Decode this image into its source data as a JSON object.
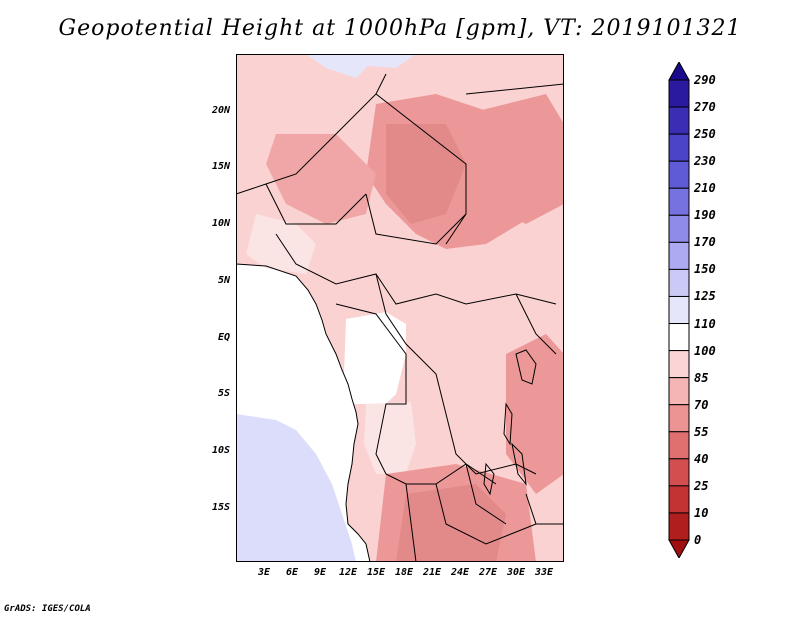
{
  "title": "Geopotential Height at 1000hPa [gpm], VT: 2019101321",
  "footer": "GrADS: IGES/COLA",
  "latitude_labels": [
    "20N",
    "15N",
    "10N",
    "5N",
    "EQ",
    "5S",
    "10S",
    "15S"
  ],
  "longitude_labels": [
    "3E",
    "6E",
    "9E",
    "12E",
    "15E",
    "18E",
    "21E",
    "24E",
    "27E",
    "30E",
    "33E"
  ],
  "colorbar": {
    "labels": [
      "290",
      "270",
      "250",
      "230",
      "210",
      "190",
      "170",
      "150",
      "125",
      "110",
      "100",
      "85",
      "70",
      "55",
      "40",
      "25",
      "10",
      "0"
    ],
    "colors": [
      "#1a0a8c",
      "#2a1aa0",
      "#3a2eb4",
      "#4b43c8",
      "#5f5ad6",
      "#7672e0",
      "#8f8ce9",
      "#acaaf1",
      "#cbcaf7",
      "#e6e6fb",
      "#ffffff",
      "#fbd5d5",
      "#f5b5b5",
      "#ec9393",
      "#e07070",
      "#d34f4f",
      "#c33333",
      "#b01e1e",
      "#a01010"
    ]
  },
  "map_colors": {
    "sea_blue": "#dcdcfb",
    "light_pink": "#fbd2d2",
    "pink": "#f5b3b3",
    "mid_pink": "#ec9898",
    "dark_pink": "#e28a8a",
    "white": "#ffffff"
  }
}
